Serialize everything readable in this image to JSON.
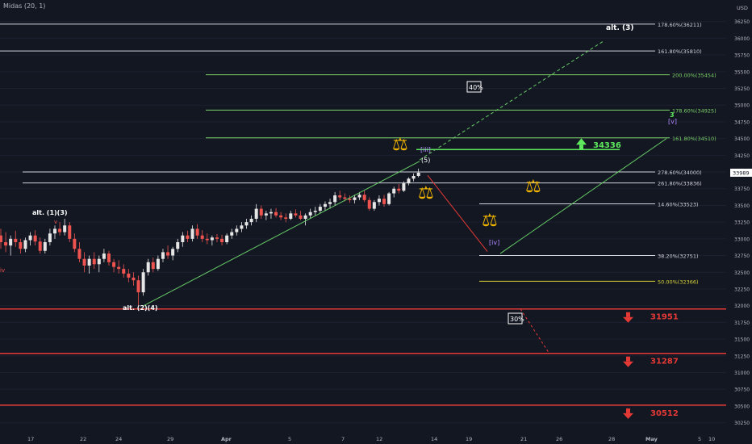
{
  "indicator_label": "Midas (20, 1)",
  "currency": "USD",
  "price_badge": "33989",
  "colors": {
    "background": "#131722",
    "bull": "#e6e6e6",
    "bear": "#ef5350",
    "fib_white": "#d1d4dc",
    "fib_green": "#7ed36a",
    "fib_yellow": "#d8d23a",
    "support_red": "#e53935",
    "path_green": "#66cc66",
    "path_red": "#e53935",
    "wave_purple": "#b388ff",
    "scale_gold": "#f0b400",
    "target_green": "#5ee85e"
  },
  "chart_data": {
    "type": "candlestick",
    "y_axis": {
      "range": [
        30100,
        36500
      ],
      "ticks": [
        30250,
        30500,
        30750,
        31000,
        31250,
        31500,
        31750,
        32000,
        32250,
        32500,
        32750,
        33000,
        33250,
        33500,
        33750,
        34000,
        34250,
        34500,
        34750,
        35000,
        35250,
        35500,
        35750,
        36000,
        36250
      ]
    },
    "x_axis": {
      "tick_labels": [
        "17",
        "22",
        "24",
        "29",
        "Apr",
        "5",
        "7",
        "12",
        "14",
        "19",
        "21",
        "26",
        "28",
        "May",
        "5",
        "10"
      ]
    },
    "fib_levels": [
      {
        "label": "178.60%(36211)",
        "price": 36211,
        "color": "white"
      },
      {
        "label": "161.80%(35810)",
        "price": 35810,
        "color": "white"
      },
      {
        "label": "200.00%(35454)",
        "price": 35454,
        "color": "green"
      },
      {
        "label": "178.60%(34925)",
        "price": 34925,
        "color": "green"
      },
      {
        "label": "161.80%(34510)",
        "price": 34510,
        "color": "green"
      },
      {
        "label": "278.60%(34000)",
        "price": 34000,
        "color": "white"
      },
      {
        "label": "261.80%(33836)",
        "price": 33836,
        "color": "white"
      },
      {
        "label": "14.60%(33523)",
        "price": 33523,
        "color": "white"
      },
      {
        "label": "38.20%(32751)",
        "price": 32751,
        "color": "white"
      },
      {
        "label": "50.00%(32366)",
        "price": 32366,
        "color": "yellow"
      }
    ],
    "support_levels": [
      {
        "label": "31951",
        "price": 31951
      },
      {
        "label": "31287",
        "price": 31287
      },
      {
        "label": "30512",
        "price": 30512
      }
    ],
    "resistance_target": {
      "label": "34336",
      "price": 34336
    },
    "wave_labels": [
      {
        "text": "alt. (1)(3)",
        "color": "white"
      },
      {
        "text": "alt. (2)(4)",
        "color": "white"
      },
      {
        "text": "[iii]",
        "color": "purple"
      },
      {
        "text": "(5)",
        "color": "white"
      },
      {
        "text": "[iv]",
        "color": "purple"
      },
      {
        "text": "alt. (3)",
        "color": "white"
      },
      {
        "text": "3",
        "color": "green"
      },
      {
        "text": "[v]",
        "color": "purple"
      },
      {
        "text": "v",
        "color": "red"
      },
      {
        "text": "iv",
        "color": "red"
      }
    ],
    "probabilities": [
      "40%",
      "30%"
    ],
    "series": [
      {
        "x": 0,
        "o": 33050,
        "h": 33150,
        "l": 32850,
        "c": 32950
      },
      {
        "x": 1,
        "o": 32950,
        "h": 33100,
        "l": 32800,
        "c": 32900
      },
      {
        "x": 2,
        "o": 32900,
        "h": 33050,
        "l": 32750,
        "c": 33000
      },
      {
        "x": 3,
        "o": 33000,
        "h": 33120,
        "l": 32880,
        "c": 32950
      },
      {
        "x": 4,
        "o": 32950,
        "h": 33000,
        "l": 32780,
        "c": 32850
      },
      {
        "x": 5,
        "o": 32850,
        "h": 33020,
        "l": 32800,
        "c": 32980
      },
      {
        "x": 6,
        "o": 32980,
        "h": 33100,
        "l": 32900,
        "c": 33050
      },
      {
        "x": 7,
        "o": 33050,
        "h": 33130,
        "l": 32900,
        "c": 32960
      },
      {
        "x": 8,
        "o": 32960,
        "h": 33020,
        "l": 32780,
        "c": 32820
      },
      {
        "x": 9,
        "o": 32820,
        "h": 33000,
        "l": 32780,
        "c": 32950
      },
      {
        "x": 10,
        "o": 32950,
        "h": 33150,
        "l": 32900,
        "c": 33080
      },
      {
        "x": 11,
        "o": 33080,
        "h": 33200,
        "l": 33000,
        "c": 33150
      },
      {
        "x": 12,
        "o": 33150,
        "h": 33250,
        "l": 33050,
        "c": 33100
      },
      {
        "x": 13,
        "o": 33100,
        "h": 33300,
        "l": 33050,
        "c": 33200
      },
      {
        "x": 14,
        "o": 33200,
        "h": 33250,
        "l": 32950,
        "c": 33000
      },
      {
        "x": 15,
        "o": 33000,
        "h": 33080,
        "l": 32800,
        "c": 32850
      },
      {
        "x": 16,
        "o": 32850,
        "h": 32950,
        "l": 32650,
        "c": 32700
      },
      {
        "x": 17,
        "o": 32700,
        "h": 32800,
        "l": 32500,
        "c": 32600
      },
      {
        "x": 18,
        "o": 32600,
        "h": 32750,
        "l": 32480,
        "c": 32700
      },
      {
        "x": 19,
        "o": 32700,
        "h": 32800,
        "l": 32550,
        "c": 32620
      },
      {
        "x": 20,
        "o": 32620,
        "h": 32750,
        "l": 32500,
        "c": 32700
      },
      {
        "x": 21,
        "o": 32700,
        "h": 32850,
        "l": 32650,
        "c": 32780
      },
      {
        "x": 22,
        "o": 32780,
        "h": 32820,
        "l": 32600,
        "c": 32650
      },
      {
        "x": 23,
        "o": 32650,
        "h": 32700,
        "l": 32500,
        "c": 32580
      },
      {
        "x": 24,
        "o": 32580,
        "h": 32680,
        "l": 32480,
        "c": 32550
      },
      {
        "x": 25,
        "o": 32550,
        "h": 32620,
        "l": 32420,
        "c": 32480
      },
      {
        "x": 26,
        "o": 32480,
        "h": 32550,
        "l": 32350,
        "c": 32420
      },
      {
        "x": 27,
        "o": 32420,
        "h": 32500,
        "l": 32300,
        "c": 32380
      },
      {
        "x": 28,
        "o": 32380,
        "h": 32450,
        "l": 32000,
        "c": 32200
      },
      {
        "x": 29,
        "o": 32200,
        "h": 32550,
        "l": 32150,
        "c": 32500
      },
      {
        "x": 30,
        "o": 32500,
        "h": 32700,
        "l": 32450,
        "c": 32650
      },
      {
        "x": 31,
        "o": 32650,
        "h": 32720,
        "l": 32500,
        "c": 32550
      },
      {
        "x": 32,
        "o": 32550,
        "h": 32750,
        "l": 32520,
        "c": 32700
      },
      {
        "x": 33,
        "o": 32700,
        "h": 32850,
        "l": 32650,
        "c": 32800
      },
      {
        "x": 34,
        "o": 32800,
        "h": 32900,
        "l": 32700,
        "c": 32750
      },
      {
        "x": 35,
        "o": 32750,
        "h": 32880,
        "l": 32680,
        "c": 32850
      },
      {
        "x": 36,
        "o": 32850,
        "h": 33000,
        "l": 32800,
        "c": 32950
      },
      {
        "x": 37,
        "o": 32950,
        "h": 33100,
        "l": 32880,
        "c": 33050
      },
      {
        "x": 38,
        "o": 33050,
        "h": 33120,
        "l": 32950,
        "c": 33000
      },
      {
        "x": 39,
        "o": 33000,
        "h": 33200,
        "l": 32960,
        "c": 33150
      },
      {
        "x": 40,
        "o": 33150,
        "h": 33220,
        "l": 33000,
        "c": 33050
      },
      {
        "x": 41,
        "o": 33050,
        "h": 33130,
        "l": 32950,
        "c": 33000
      },
      {
        "x": 42,
        "o": 33000,
        "h": 33080,
        "l": 32920,
        "c": 32980
      },
      {
        "x": 43,
        "o": 32980,
        "h": 33050,
        "l": 32900,
        "c": 33020
      },
      {
        "x": 44,
        "o": 33020,
        "h": 33070,
        "l": 32950,
        "c": 33000
      },
      {
        "x": 45,
        "o": 33000,
        "h": 33060,
        "l": 32900,
        "c": 32950
      },
      {
        "x": 46,
        "o": 32950,
        "h": 33080,
        "l": 32920,
        "c": 33050
      },
      {
        "x": 47,
        "o": 33050,
        "h": 33150,
        "l": 33000,
        "c": 33100
      },
      {
        "x": 48,
        "o": 33100,
        "h": 33200,
        "l": 33050,
        "c": 33150
      },
      {
        "x": 49,
        "o": 33150,
        "h": 33250,
        "l": 33100,
        "c": 33200
      },
      {
        "x": 50,
        "o": 33200,
        "h": 33300,
        "l": 33150,
        "c": 33250
      },
      {
        "x": 51,
        "o": 33250,
        "h": 33350,
        "l": 33200,
        "c": 33300
      },
      {
        "x": 52,
        "o": 33300,
        "h": 33520,
        "l": 33250,
        "c": 33450
      },
      {
        "x": 53,
        "o": 33450,
        "h": 33500,
        "l": 33300,
        "c": 33350
      },
      {
        "x": 54,
        "o": 33350,
        "h": 33420,
        "l": 33280,
        "c": 33380
      },
      {
        "x": 55,
        "o": 33380,
        "h": 33450,
        "l": 33300,
        "c": 33400
      },
      {
        "x": 56,
        "o": 33400,
        "h": 33460,
        "l": 33320,
        "c": 33350
      },
      {
        "x": 57,
        "o": 33350,
        "h": 33400,
        "l": 33280,
        "c": 33320
      },
      {
        "x": 58,
        "o": 33320,
        "h": 33380,
        "l": 33250,
        "c": 33300
      },
      {
        "x": 59,
        "o": 33300,
        "h": 33420,
        "l": 33280,
        "c": 33380
      },
      {
        "x": 60,
        "o": 33380,
        "h": 33440,
        "l": 33320,
        "c": 33350
      },
      {
        "x": 61,
        "o": 33350,
        "h": 33420,
        "l": 33280,
        "c": 33300
      },
      {
        "x": 62,
        "o": 33300,
        "h": 33380,
        "l": 33200,
        "c": 33350
      },
      {
        "x": 63,
        "o": 33350,
        "h": 33450,
        "l": 33300,
        "c": 33400
      },
      {
        "x": 64,
        "o": 33400,
        "h": 33480,
        "l": 33350,
        "c": 33420
      },
      {
        "x": 65,
        "o": 33420,
        "h": 33520,
        "l": 33380,
        "c": 33480
      },
      {
        "x": 66,
        "o": 33480,
        "h": 33560,
        "l": 33420,
        "c": 33520
      },
      {
        "x": 67,
        "o": 33520,
        "h": 33600,
        "l": 33450,
        "c": 33550
      },
      {
        "x": 68,
        "o": 33550,
        "h": 33700,
        "l": 33500,
        "c": 33650
      },
      {
        "x": 69,
        "o": 33650,
        "h": 33720,
        "l": 33580,
        "c": 33620
      },
      {
        "x": 70,
        "o": 33620,
        "h": 33680,
        "l": 33560,
        "c": 33600
      },
      {
        "x": 71,
        "o": 33600,
        "h": 33650,
        "l": 33540,
        "c": 33580
      },
      {
        "x": 72,
        "o": 33580,
        "h": 33660,
        "l": 33530,
        "c": 33620
      },
      {
        "x": 73,
        "o": 33620,
        "h": 33700,
        "l": 33580,
        "c": 33660
      },
      {
        "x": 74,
        "o": 33660,
        "h": 33720,
        "l": 33550,
        "c": 33580
      },
      {
        "x": 75,
        "o": 33580,
        "h": 33620,
        "l": 33420,
        "c": 33450
      },
      {
        "x": 76,
        "o": 33450,
        "h": 33580,
        "l": 33420,
        "c": 33550
      },
      {
        "x": 77,
        "o": 33550,
        "h": 33650,
        "l": 33500,
        "c": 33600
      },
      {
        "x": 78,
        "o": 33600,
        "h": 33660,
        "l": 33480,
        "c": 33520
      },
      {
        "x": 79,
        "o": 33520,
        "h": 33700,
        "l": 33500,
        "c": 33680
      },
      {
        "x": 80,
        "o": 33680,
        "h": 33780,
        "l": 33620,
        "c": 33750
      },
      {
        "x": 81,
        "o": 33750,
        "h": 33820,
        "l": 33680,
        "c": 33720
      },
      {
        "x": 82,
        "o": 33720,
        "h": 33860,
        "l": 33700,
        "c": 33830
      },
      {
        "x": 83,
        "o": 33830,
        "h": 33920,
        "l": 33800,
        "c": 33900
      },
      {
        "x": 84,
        "o": 33900,
        "h": 33980,
        "l": 33860,
        "c": 33940
      },
      {
        "x": 85,
        "o": 33940,
        "h": 34050,
        "l": 33920,
        "c": 33989
      }
    ]
  }
}
